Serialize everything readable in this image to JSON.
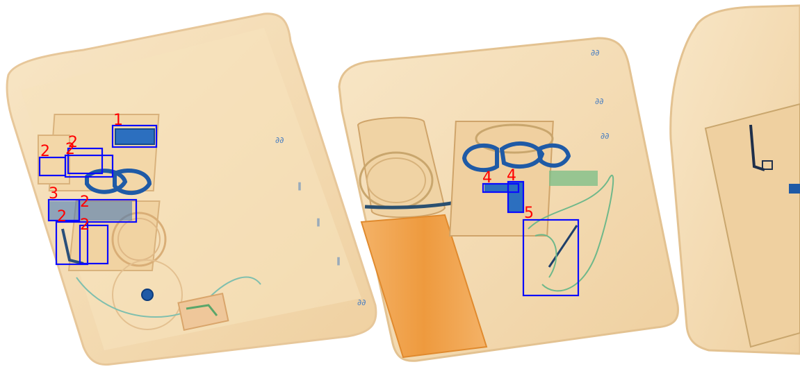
{
  "image": {
    "kind": "x-ray baggage scan",
    "colors": {
      "background": "#ffffff",
      "organic": "#f6dcb2",
      "organic_dark": "#e9c08a",
      "dense_orange": "#f2a24a",
      "inorganic_green": "#7fae7a",
      "metal_blue": "#1f5aa6",
      "box_stroke": "#0a0aff",
      "label_color": "#ff0000"
    }
  },
  "detections": [
    {
      "label": "1"
    },
    {
      "label": "2"
    },
    {
      "label": "2"
    },
    {
      "label": "2"
    },
    {
      "label": "3"
    },
    {
      "label": "2"
    },
    {
      "label": "2"
    },
    {
      "label": "2"
    },
    {
      "label": "4"
    },
    {
      "label": "4"
    },
    {
      "label": "5"
    }
  ]
}
